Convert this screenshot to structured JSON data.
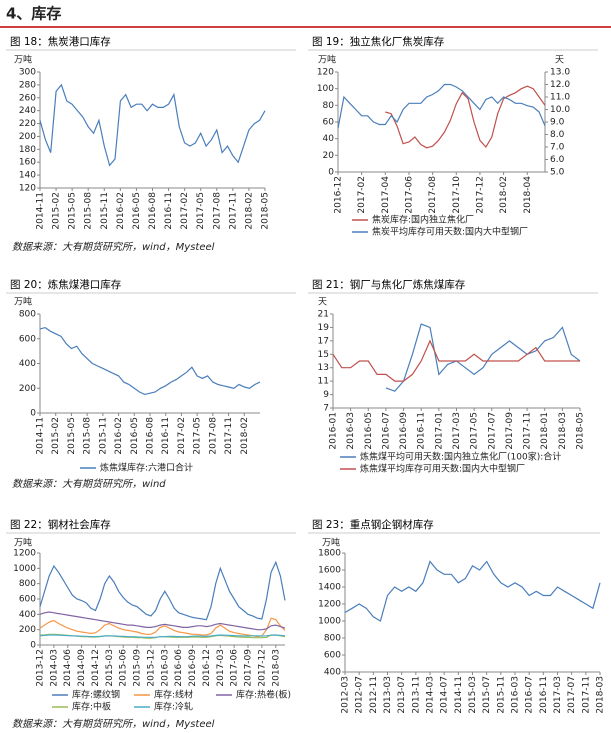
{
  "heading": "4、库存",
  "sources": [
    "数据来源：大有期货研究所，wind，Mysteel",
    "数据来源：大有期货研究所，wind",
    "数据来源：大有期货研究所，wind，Mysteel"
  ],
  "chart_data": [
    {
      "type": "line",
      "title": "图 18：焦炭港口库存",
      "y_label": "万吨",
      "color": "#4a7ebb",
      "categories": [
        "2014-11",
        null,
        null,
        "2015-02",
        null,
        null,
        "2015-05",
        null,
        null,
        "2015-08",
        null,
        null,
        "2015-11",
        null,
        null,
        "2016-02",
        null,
        null,
        "2016-05",
        null,
        null,
        "2016-08",
        null,
        null,
        "2016-11",
        null,
        null,
        "2017-02",
        null,
        null,
        "2017-05",
        null,
        null,
        "2017-08",
        null,
        null,
        "2017-11",
        null,
        null,
        "2018-02",
        null,
        null,
        "2018-05"
      ],
      "values": [
        225,
        195,
        175,
        270,
        280,
        255,
        250,
        240,
        230,
        215,
        205,
        225,
        185,
        155,
        165,
        255,
        265,
        245,
        250,
        250,
        240,
        250,
        245,
        245,
        250,
        265,
        215,
        190,
        185,
        190,
        205,
        185,
        195,
        210,
        175,
        185,
        170,
        160,
        185,
        210,
        220,
        225,
        240
      ],
      "ylim": [
        120,
        300
      ],
      "yticks": [
        120,
        140,
        160,
        180,
        200,
        220,
        240,
        260,
        280,
        300
      ]
    },
    {
      "type": "line",
      "title": "图 19：独立焦化厂焦炭库存",
      "y_label": "万吨",
      "y2_label": "天",
      "categories": [
        "2016-12",
        null,
        null,
        null,
        "2017-02",
        null,
        null,
        null,
        "2017-04",
        null,
        null,
        null,
        "2017-06",
        null,
        null,
        null,
        "2017-08",
        null,
        null,
        null,
        "2017-10",
        null,
        null,
        null,
        "2017-12",
        null,
        null,
        null,
        "2018-02",
        null,
        null,
        null,
        "2018-04",
        null,
        null,
        null
      ],
      "series": [
        {
          "name": "焦炭库存:国内独立焦化厂",
          "color": "#c0504d",
          "values": [
            null,
            null,
            null,
            null,
            null,
            null,
            null,
            null,
            72,
            70,
            55,
            34,
            36,
            42,
            33,
            29,
            31,
            38,
            48,
            62,
            82,
            95,
            88,
            60,
            38,
            30,
            42,
            70,
            88,
            92,
            95,
            100,
            103,
            100,
            90,
            80
          ]
        },
        {
          "name": "焦炭平均库存可用天数:国内大中型钢厂",
          "color": "#4a7ebb",
          "axis": "y2",
          "values": [
            8.5,
            11.0,
            10.5,
            10.0,
            9.5,
            9.5,
            9.0,
            8.8,
            8.8,
            9.5,
            9.0,
            10.0,
            10.5,
            10.5,
            10.5,
            11.0,
            11.2,
            11.5,
            12.0,
            12.0,
            11.8,
            11.5,
            11.0,
            10.5,
            10.0,
            10.8,
            11.0,
            10.5,
            11.0,
            10.8,
            10.5,
            10.5,
            10.3,
            10.2,
            9.8,
            8.7
          ]
        }
      ],
      "ylim": [
        0,
        120
      ],
      "yticks": [
        0,
        20,
        40,
        60,
        80,
        100,
        120
      ],
      "y2lim": [
        5,
        13
      ],
      "y2ticks": [
        {
          "value": 5,
          "label": "5.0"
        },
        {
          "value": 6,
          "label": "6.0"
        },
        {
          "value": 7,
          "label": "7.0"
        },
        {
          "value": 8,
          "label": "8.0"
        },
        {
          "value": 9,
          "label": "9.0"
        },
        {
          "value": 10,
          "label": "10.0"
        },
        {
          "value": 11,
          "label": "11.0"
        },
        {
          "value": 12,
          "label": "12.0"
        },
        {
          "value": 13,
          "label": "13.0"
        }
      ]
    },
    {
      "type": "line",
      "title": "图 20：炼焦煤港口库存",
      "y_label": "万吨",
      "categories": [
        "2014-11",
        null,
        null,
        "2015-02",
        null,
        null,
        "2015-05",
        null,
        null,
        "2015-08",
        null,
        null,
        "2015-11",
        null,
        null,
        "2016-02",
        null,
        null,
        "2016-05",
        null,
        null,
        "2016-08",
        null,
        null,
        "2016-11",
        null,
        null,
        "2017-02",
        null,
        null,
        "2017-05",
        null,
        null,
        "2017-08",
        null,
        null,
        "2017-11",
        null,
        null,
        "2018-02",
        null,
        null,
        null
      ],
      "series": [
        {
          "name": "炼焦煤库存:六港口合计",
          "color": "#4a7ebb",
          "values": [
            680,
            690,
            660,
            640,
            620,
            560,
            520,
            540,
            480,
            440,
            400,
            380,
            360,
            340,
            320,
            300,
            250,
            230,
            200,
            170,
            150,
            160,
            170,
            200,
            220,
            250,
            270,
            300,
            330,
            370,
            300,
            280,
            300,
            250,
            230,
            220,
            210,
            200,
            230,
            210,
            200,
            230,
            250
          ]
        }
      ],
      "ylim": [
        0,
        800
      ],
      "yticks": [
        0,
        200,
        400,
        600,
        800
      ]
    },
    {
      "type": "line",
      "title": "图 21：钢厂与焦化厂炼焦煤库存",
      "y_label": "天",
      "categories": [
        "2016-01",
        null,
        "2016-03",
        null,
        "2016-05",
        null,
        "2016-07",
        null,
        "2016-09",
        null,
        "2016-11",
        null,
        "2017-01",
        null,
        "2017-03",
        null,
        "2017-05",
        null,
        "2017-07",
        null,
        "2017-09",
        null,
        "2017-11",
        null,
        "2018-01",
        null,
        "2018-03",
        null,
        "2018-05"
      ],
      "series": [
        {
          "name": "炼焦煤平均可用天数:国内独立焦化厂(100家):合计",
          "color": "#4a7ebb",
          "values": [
            null,
            null,
            null,
            null,
            null,
            null,
            10,
            9.5,
            11,
            15,
            19.5,
            19,
            12,
            13.5,
            14,
            13,
            12,
            13,
            15,
            16,
            17,
            16,
            15,
            15.5,
            17,
            17.5,
            19,
            15,
            14
          ]
        },
        {
          "name": "炼焦煤平均库存可用天数:国内大中型钢厂",
          "color": "#c0504d",
          "values": [
            15,
            13,
            13,
            14,
            14,
            12,
            12,
            11,
            11,
            12,
            14,
            17,
            14,
            14,
            14,
            14,
            15,
            14,
            14,
            14,
            14,
            14,
            15,
            16,
            14,
            14,
            14,
            14,
            14
          ]
        }
      ],
      "ylim": [
        7,
        21
      ],
      "yticks": [
        7,
        9,
        11,
        13,
        15,
        17,
        19,
        21
      ]
    },
    {
      "type": "line",
      "title": "图 22：钢材社会库存",
      "y_label": "万吨",
      "categories": [
        "2013-12",
        null,
        null,
        "2014-03",
        null,
        null,
        "2014-06",
        null,
        null,
        "2014-09",
        null,
        null,
        "2014-12",
        null,
        null,
        "2015-03",
        null,
        null,
        "2015-06",
        null,
        null,
        "2015-09",
        null,
        null,
        "2015-12",
        null,
        null,
        "2016-03",
        null,
        null,
        "2016-06",
        null,
        null,
        "2016-09",
        null,
        null,
        "2016-12",
        null,
        null,
        "2017-03",
        null,
        null,
        "2017-06",
        null,
        null,
        "2017-09",
        null,
        null,
        "2017-12",
        null,
        null,
        "2018-03",
        null,
        null
      ],
      "series": [
        {
          "name": "库存:螺纹钢",
          "color": "#4a7ebb",
          "values": [
            500,
            700,
            900,
            1030,
            950,
            850,
            750,
            650,
            600,
            580,
            550,
            480,
            450,
            600,
            800,
            900,
            820,
            700,
            620,
            560,
            520,
            500,
            450,
            400,
            380,
            450,
            600,
            700,
            600,
            480,
            420,
            400,
            380,
            360,
            350,
            340,
            330,
            500,
            800,
            1000,
            850,
            700,
            600,
            500,
            450,
            400,
            380,
            350,
            340,
            600,
            950,
            1080,
            900,
            580
          ]
        },
        {
          "name": "库存:线材",
          "color": "#f79646",
          "values": [
            220,
            260,
            300,
            320,
            280,
            250,
            220,
            200,
            180,
            170,
            160,
            150,
            160,
            200,
            260,
            280,
            250,
            220,
            200,
            190,
            180,
            170,
            150,
            140,
            140,
            170,
            230,
            250,
            220,
            190,
            170,
            160,
            150,
            140,
            140,
            130,
            130,
            150,
            220,
            260,
            220,
            180,
            160,
            150,
            140,
            130,
            120,
            110,
            120,
            200,
            350,
            330,
            250,
            190
          ]
        },
        {
          "name": "库存:热卷(板)",
          "color": "#8064a2",
          "values": [
            400,
            420,
            430,
            420,
            410,
            400,
            390,
            380,
            370,
            360,
            350,
            340,
            330,
            320,
            310,
            300,
            290,
            280,
            270,
            260,
            260,
            250,
            240,
            230,
            230,
            240,
            260,
            270,
            260,
            250,
            240,
            230,
            230,
            240,
            250,
            250,
            240,
            250,
            270,
            280,
            270,
            260,
            250,
            240,
            230,
            220,
            210,
            200,
            200,
            210,
            250,
            260,
            240,
            220
          ]
        },
        {
          "name": "库存:中板",
          "color": "#9bbb59",
          "values": [
            130,
            130,
            140,
            140,
            135,
            130,
            125,
            120,
            115,
            110,
            110,
            105,
            105,
            110,
            120,
            120,
            115,
            110,
            105,
            100,
            100,
            95,
            95,
            90,
            90,
            95,
            110,
            110,
            105,
            100,
            100,
            100,
            100,
            105,
            105,
            100,
            100,
            110,
            120,
            125,
            120,
            115,
            110,
            105,
            100,
            100,
            95,
            95,
            95,
            100,
            130,
            130,
            120,
            110
          ]
        },
        {
          "name": "库存:冷轧",
          "color": "#4bacc6",
          "values": [
            120,
            125,
            130,
            130,
            128,
            125,
            122,
            120,
            118,
            115,
            112,
            110,
            110,
            112,
            118,
            120,
            118,
            115,
            112,
            110,
            108,
            105,
            102,
            100,
            100,
            100,
            108,
            110,
            112,
            112,
            110,
            108,
            110,
            115,
            118,
            115,
            112,
            118,
            125,
            130,
            128,
            125,
            122,
            120,
            118,
            118,
            120,
            120,
            118,
            120,
            128,
            130,
            125,
            120
          ]
        }
      ],
      "ylim": [
        0,
        1200
      ],
      "yticks": [
        0,
        200,
        400,
        600,
        800,
        1000,
        1200
      ]
    },
    {
      "type": "line",
      "title": "图 23：重点钢企钢材库存",
      "y_label": "万吨",
      "color": "#4a7ebb",
      "categories": [
        "2012-03",
        null,
        "2012-07",
        null,
        "2012-11",
        null,
        "2013-03",
        null,
        "2013-07",
        null,
        "2013-11",
        null,
        "2014-03",
        null,
        "2014-07",
        null,
        "2014-11",
        null,
        "2015-03",
        null,
        "2015-07",
        null,
        "2015-11",
        null,
        "2016-03",
        null,
        "2016-07",
        null,
        "2016-11",
        null,
        "2017-03",
        null,
        "2017-07",
        null,
        "2017-11",
        null,
        "2018-03"
      ],
      "values": [
        1100,
        1150,
        1200,
        1150,
        1050,
        1000,
        1300,
        1400,
        1350,
        1400,
        1350,
        1450,
        1700,
        1600,
        1550,
        1550,
        1450,
        1500,
        1650,
        1600,
        1700,
        1550,
        1450,
        1400,
        1450,
        1400,
        1300,
        1350,
        1300,
        1300,
        1400,
        1350,
        1300,
        1250,
        1200,
        1150,
        1450
      ],
      "ylim": [
        400,
        1800
      ],
      "yticks": [
        400,
        600,
        800,
        1000,
        1200,
        1400,
        1600,
        1800
      ]
    }
  ]
}
